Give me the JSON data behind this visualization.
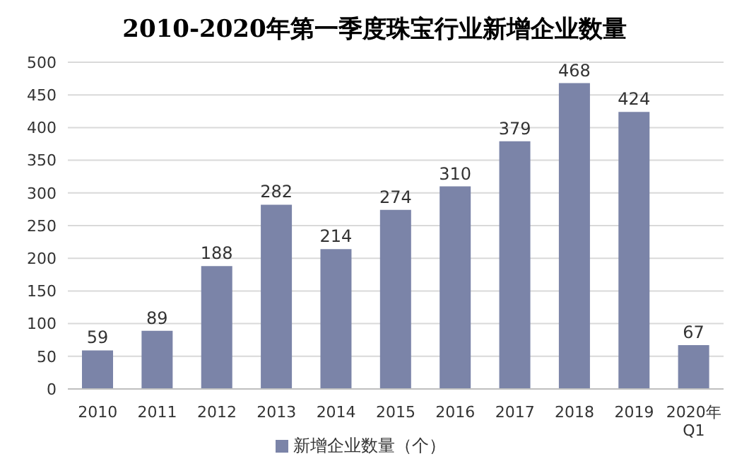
{
  "chart_data": {
    "type": "bar",
    "title": "2010-2020年第一季度珠宝行业新增企业数量",
    "categories": [
      "2010",
      "2011",
      "2012",
      "2013",
      "2014",
      "2015",
      "2016",
      "2017",
      "2018",
      "2019",
      "2020年Q1"
    ],
    "series": [
      {
        "name": "新增企业数量（个）",
        "color": "#7b84a8",
        "values": [
          59,
          89,
          188,
          282,
          214,
          274,
          310,
          379,
          468,
          424,
          67
        ]
      }
    ],
    "ylim": [
      0,
      500
    ],
    "yticks": [
      0,
      50,
      100,
      150,
      200,
      250,
      300,
      350,
      400,
      450,
      500
    ],
    "grid": "y",
    "legend": "bottom",
    "data_labels": true
  }
}
